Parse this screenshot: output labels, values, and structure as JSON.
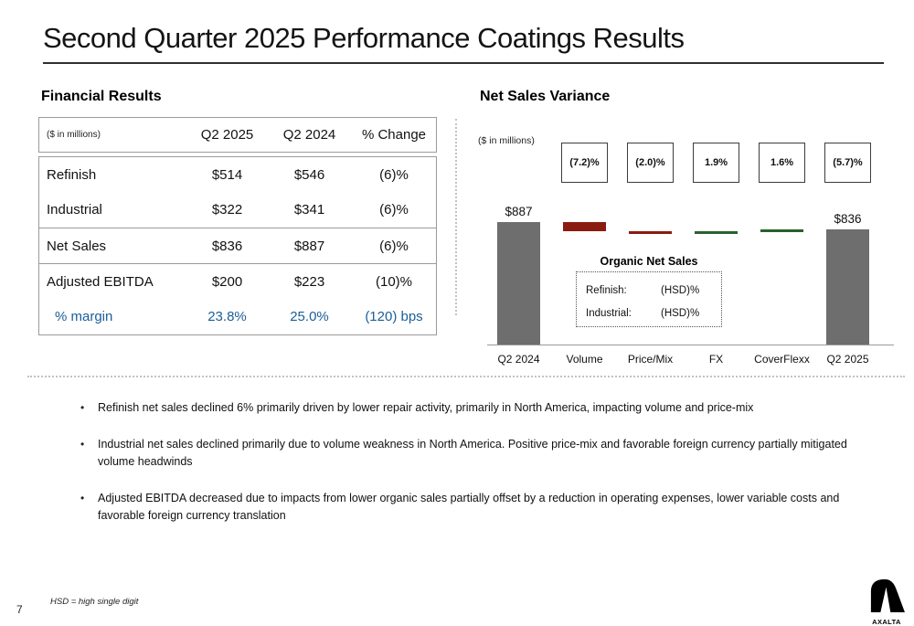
{
  "slide": {
    "title": "Second Quarter 2025 Performance Coatings Results",
    "page_number": "7",
    "footnote": "HSD = high single digit",
    "logo_text": "AXALTA"
  },
  "financial_results": {
    "heading": "Financial Results",
    "unit_label": "($ in millions)",
    "columns": [
      "Q2 2025",
      "Q2 2024",
      "% Change"
    ],
    "rows": [
      {
        "label": "Refinish",
        "q2_2025": "$514",
        "q2_2024": "$546",
        "change": "(6)%"
      },
      {
        "label": "Industrial",
        "q2_2025": "$322",
        "q2_2024": "$341",
        "change": "(6)%"
      },
      {
        "label": "Net Sales",
        "q2_2025": "$836",
        "q2_2024": "$887",
        "change": "(6)%"
      },
      {
        "label": "Adjusted EBITDA",
        "q2_2025": "$200",
        "q2_2024": "$223",
        "change": "(10)%"
      },
      {
        "label": "% margin",
        "q2_2025": "23.8%",
        "q2_2024": "25.0%",
        "change": "(120) bps"
      }
    ]
  },
  "net_sales_variance": {
    "heading": "Net Sales Variance",
    "unit_label": "($ in millions)",
    "organic": {
      "title": "Organic Net Sales",
      "rows": [
        {
          "label": "Refinish:",
          "value": "(HSD)%"
        },
        {
          "label": "Industrial:",
          "value": "(HSD)%"
        }
      ]
    }
  },
  "chart_data": {
    "type": "bar",
    "subtype": "waterfall",
    "title": "Net Sales Variance",
    "unit": "$ in millions",
    "categories": [
      "Q2 2024",
      "Volume",
      "Price/Mix",
      "FX",
      "CoverFlexx",
      "Q2 2025"
    ],
    "steps": [
      {
        "name": "Q2 2024",
        "kind": "total",
        "start": 0,
        "end": 887,
        "value_label": "$887",
        "pct_label": null
      },
      {
        "name": "Volume",
        "kind": "decrease",
        "start": 887,
        "end": 823,
        "value_label": null,
        "pct_label": "(7.2)%"
      },
      {
        "name": "Price/Mix",
        "kind": "decrease",
        "start": 823,
        "end": 805,
        "value_label": null,
        "pct_label": "(2.0)%"
      },
      {
        "name": "FX",
        "kind": "increase",
        "start": 805,
        "end": 822,
        "value_label": null,
        "pct_label": "1.9%"
      },
      {
        "name": "CoverFlexx",
        "kind": "increase",
        "start": 822,
        "end": 836,
        "value_label": null,
        "pct_label": "1.6%"
      },
      {
        "name": "Q2 2025",
        "kind": "total",
        "start": 0,
        "end": 836,
        "value_label": "$836",
        "pct_label": "(5.7)%"
      }
    ],
    "ylim": [
      0,
      887
    ],
    "grid": false,
    "legend": "none",
    "colors": {
      "total": "#6e6e6e",
      "decrease": "#8b1b11",
      "increase": "#27612b"
    }
  },
  "bullets": [
    "Refinish net sales declined 6% primarily driven by lower repair activity, primarily in North America, impacting volume and price-mix",
    "Industrial net sales declined primarily due to volume weakness in North America.  Positive price-mix and favorable foreign currency partially mitigated volume headwinds",
    "Adjusted EBITDA decreased due to impacts from lower organic sales partially offset by a reduction in operating expenses, lower variable costs and favorable foreign currency translation"
  ]
}
